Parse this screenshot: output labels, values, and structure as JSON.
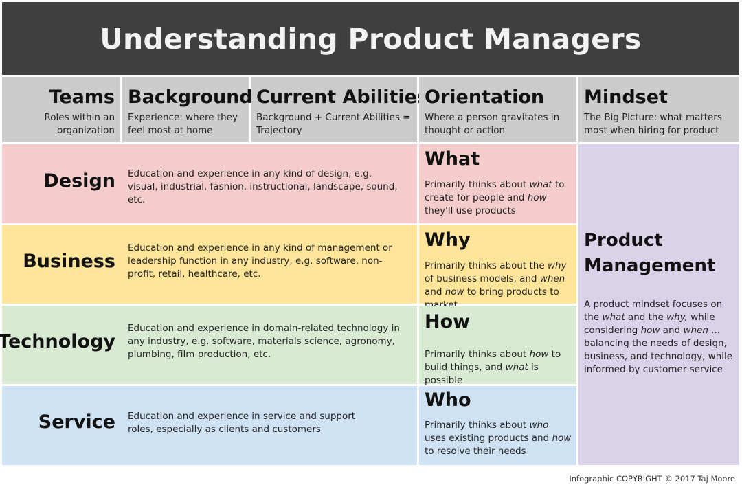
{
  "title": "Understanding Product Managers",
  "headers": {
    "teams": {
      "title": "Teams",
      "subtitle": "Roles within an organization"
    },
    "background": {
      "title": "Background",
      "subtitle": "Experience: where they feel most at home"
    },
    "abilities": {
      "title": "Current Abilities",
      "subtitle": "Background + Current Abilities = Trajectory"
    },
    "orientation": {
      "title": "Orientation",
      "subtitle": "Where a person gravitates in thought or action"
    },
    "mindset": {
      "title": "Mindset",
      "subtitle": "The Big Picture: what matters most when hiring for product"
    }
  },
  "rows": [
    {
      "team": "Design",
      "background": "Education and experience in any kind of design, e.g. visual, industrial, fashion, instructional, landscape, sound, etc.",
      "orientation_title": "What",
      "color": "#f4cccc"
    },
    {
      "team": "Business",
      "background": "Education and experience in any kind of management or leadership function in any industry, e.g. software, non-profit, retail, healthcare, etc.",
      "orientation_title": "Why",
      "color": "#ffe599"
    },
    {
      "team": "Technology",
      "background": "Education and experience in domain-related technology in any industry, e.g. software, materials science, agronomy, plumbing, film production, etc.",
      "orientation_title": "How",
      "color": "#d9ead3"
    },
    {
      "team": "Service",
      "background": "Education and experience in service and support roles, especially as clients and customers",
      "orientation_title": "Who",
      "color": "#cfe2f3"
    }
  ],
  "orientation_text": {
    "what": {
      "a": "Primarily thinks about ",
      "b": "what",
      "c": " to create for people and ",
      "d": "how",
      "e": " they'll use products"
    },
    "why": {
      "a": "Primarily thinks about the ",
      "b": "why",
      "c": " of business models, and ",
      "d": "when",
      "e": " and ",
      "f": "how",
      "g": " to bring products to market"
    },
    "how": {
      "a": "Primarily thinks about ",
      "b": "how",
      "c": " to build things, and ",
      "d": "what",
      "e": " is possible"
    },
    "who": {
      "a": "Primarily thinks about ",
      "b": "who",
      "c": " uses existing products and ",
      "d": "how",
      "e": " to resolve their needs"
    }
  },
  "mindset": {
    "title": "Product Management",
    "text": {
      "a": "A product mindset focuses on the ",
      "b": "what",
      "c": " and the ",
      "d": "why,",
      "e": " while considering ",
      "f": "how",
      "g": " and ",
      "h": "when",
      "i": " ... balancing the needs of design, business, and technology, while informed by customer service"
    },
    "color": "#d9d2e9"
  },
  "copyright": "Infographic COPYRIGHT © 2017 Taj Moore"
}
